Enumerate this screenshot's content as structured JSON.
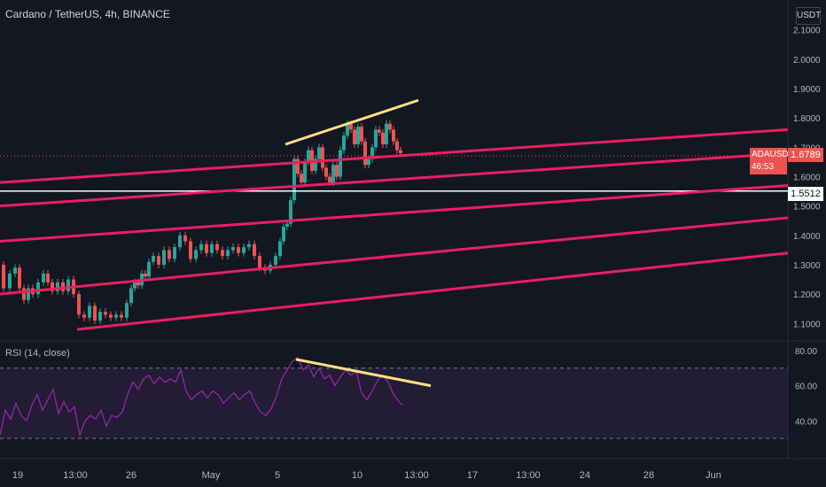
{
  "header": {
    "title": "Cardano / TetherUS, 4h, BINANCE",
    "currency_button": "USDT"
  },
  "current_price": {
    "symbol": "ADAUSDT",
    "value": "1.6789",
    "countdown": "46:53"
  },
  "horizontal_line": {
    "value": "1.5512"
  },
  "colors": {
    "background": "#131722",
    "up": "#26a69a",
    "down": "#ef5350",
    "channel": "#e91e63",
    "trend": "#ffe082",
    "rsi": "#9c27b0",
    "rsi_band": "#2a1f3d"
  },
  "chart_data": [
    {
      "type": "candlestick",
      "title": "Cardano / TetherUS, 4h, BINANCE",
      "y_ticks": [
        "2.1000",
        "2.0000",
        "1.9000",
        "1.8000",
        "1.7000",
        "1.6000",
        "1.5000",
        "1.4000",
        "1.3000",
        "1.2000",
        "1.1000"
      ],
      "ylim": [
        1.08,
        2.12
      ],
      "x_ticks": [
        "19",
        "13:00",
        "26",
        "May",
        "5",
        "10",
        "13:00",
        "17",
        "13:00",
        "24",
        "28",
        "Jun"
      ],
      "price_trace": [
        {
          "x": 0,
          "y": 1.3
        },
        {
          "x": 8,
          "y": 1.22
        },
        {
          "x": 14,
          "y": 1.27
        },
        {
          "x": 20,
          "y": 1.29
        },
        {
          "x": 24,
          "y": 1.22
        },
        {
          "x": 30,
          "y": 1.18
        },
        {
          "x": 34,
          "y": 1.22
        },
        {
          "x": 40,
          "y": 1.2
        },
        {
          "x": 46,
          "y": 1.24
        },
        {
          "x": 52,
          "y": 1.27
        },
        {
          "x": 56,
          "y": 1.24
        },
        {
          "x": 62,
          "y": 1.21
        },
        {
          "x": 68,
          "y": 1.24
        },
        {
          "x": 74,
          "y": 1.21
        },
        {
          "x": 80,
          "y": 1.25
        },
        {
          "x": 86,
          "y": 1.2
        },
        {
          "x": 92,
          "y": 1.13
        },
        {
          "x": 98,
          "y": 1.12
        },
        {
          "x": 104,
          "y": 1.16
        },
        {
          "x": 110,
          "y": 1.11
        },
        {
          "x": 116,
          "y": 1.14
        },
        {
          "x": 122,
          "y": 1.13
        },
        {
          "x": 128,
          "y": 1.12
        },
        {
          "x": 134,
          "y": 1.13
        },
        {
          "x": 140,
          "y": 1.12
        },
        {
          "x": 146,
          "y": 1.17
        },
        {
          "x": 150,
          "y": 1.22
        },
        {
          "x": 154,
          "y": 1.24
        },
        {
          "x": 158,
          "y": 1.23
        },
        {
          "x": 162,
          "y": 1.27
        },
        {
          "x": 166,
          "y": 1.26
        },
        {
          "x": 170,
          "y": 1.31
        },
        {
          "x": 176,
          "y": 1.33
        },
        {
          "x": 182,
          "y": 1.3
        },
        {
          "x": 188,
          "y": 1.35
        },
        {
          "x": 194,
          "y": 1.32
        },
        {
          "x": 200,
          "y": 1.36
        },
        {
          "x": 206,
          "y": 1.4
        },
        {
          "x": 212,
          "y": 1.38
        },
        {
          "x": 218,
          "y": 1.32
        },
        {
          "x": 224,
          "y": 1.35
        },
        {
          "x": 230,
          "y": 1.37
        },
        {
          "x": 236,
          "y": 1.34
        },
        {
          "x": 242,
          "y": 1.37
        },
        {
          "x": 248,
          "y": 1.35
        },
        {
          "x": 254,
          "y": 1.33
        },
        {
          "x": 260,
          "y": 1.35
        },
        {
          "x": 266,
          "y": 1.36
        },
        {
          "x": 272,
          "y": 1.34
        },
        {
          "x": 278,
          "y": 1.36
        },
        {
          "x": 284,
          "y": 1.37
        },
        {
          "x": 290,
          "y": 1.33
        },
        {
          "x": 296,
          "y": 1.29
        },
        {
          "x": 302,
          "y": 1.28
        },
        {
          "x": 308,
          "y": 1.3
        },
        {
          "x": 314,
          "y": 1.33
        },
        {
          "x": 318,
          "y": 1.38
        },
        {
          "x": 322,
          "y": 1.43
        },
        {
          "x": 326,
          "y": 1.44
        },
        {
          "x": 330,
          "y": 1.52
        },
        {
          "x": 334,
          "y": 1.66
        },
        {
          "x": 338,
          "y": 1.61
        },
        {
          "x": 342,
          "y": 1.58
        },
        {
          "x": 346,
          "y": 1.65
        },
        {
          "x": 350,
          "y": 1.69
        },
        {
          "x": 354,
          "y": 1.62
        },
        {
          "x": 358,
          "y": 1.66
        },
        {
          "x": 362,
          "y": 1.7
        },
        {
          "x": 366,
          "y": 1.63
        },
        {
          "x": 370,
          "y": 1.6
        },
        {
          "x": 374,
          "y": 1.58
        },
        {
          "x": 378,
          "y": 1.64
        },
        {
          "x": 382,
          "y": 1.6
        },
        {
          "x": 386,
          "y": 1.69
        },
        {
          "x": 390,
          "y": 1.74
        },
        {
          "x": 394,
          "y": 1.78
        },
        {
          "x": 398,
          "y": 1.76
        },
        {
          "x": 402,
          "y": 1.71
        },
        {
          "x": 406,
          "y": 1.77
        },
        {
          "x": 410,
          "y": 1.72
        },
        {
          "x": 414,
          "y": 1.64
        },
        {
          "x": 418,
          "y": 1.66
        },
        {
          "x": 422,
          "y": 1.7
        },
        {
          "x": 426,
          "y": 1.76
        },
        {
          "x": 430,
          "y": 1.75
        },
        {
          "x": 434,
          "y": 1.71
        },
        {
          "x": 438,
          "y": 1.78
        },
        {
          "x": 442,
          "y": 1.76
        },
        {
          "x": 446,
          "y": 1.72
        },
        {
          "x": 450,
          "y": 1.69
        },
        {
          "x": 454,
          "y": 1.68
        }
      ],
      "channel_lines": [
        {
          "x1": 0,
          "y1": 1.58,
          "x2": 889,
          "y2": 1.76
        },
        {
          "x1": 0,
          "y1": 1.5,
          "x2": 889,
          "y2": 1.68
        },
        {
          "x1": 0,
          "y1": 1.38,
          "x2": 889,
          "y2": 1.57
        },
        {
          "x1": 0,
          "y1": 1.2,
          "x2": 889,
          "y2": 1.46
        },
        {
          "x1": 87,
          "y1": 1.08,
          "x2": 889,
          "y2": 1.34
        }
      ],
      "trend_line": {
        "x1": 322,
        "y1": 1.71,
        "x2": 472,
        "y2": 1.86
      }
    },
    {
      "type": "line",
      "title": "RSI (14, close)",
      "y_ticks": [
        "80.00",
        "60.00",
        "40.00"
      ],
      "ylim": [
        26,
        82
      ],
      "upper_band": 70,
      "lower_band": 30,
      "rsi_trace": [
        {
          "x": 0,
          "y": 32
        },
        {
          "x": 6,
          "y": 46
        },
        {
          "x": 12,
          "y": 41
        },
        {
          "x": 18,
          "y": 50
        },
        {
          "x": 24,
          "y": 43
        },
        {
          "x": 30,
          "y": 40
        },
        {
          "x": 36,
          "y": 49
        },
        {
          "x": 42,
          "y": 55
        },
        {
          "x": 48,
          "y": 46
        },
        {
          "x": 54,
          "y": 52
        },
        {
          "x": 60,
          "y": 58
        },
        {
          "x": 66,
          "y": 44
        },
        {
          "x": 72,
          "y": 51
        },
        {
          "x": 78,
          "y": 45
        },
        {
          "x": 84,
          "y": 48
        },
        {
          "x": 90,
          "y": 32
        },
        {
          "x": 96,
          "y": 40
        },
        {
          "x": 102,
          "y": 43
        },
        {
          "x": 108,
          "y": 41
        },
        {
          "x": 114,
          "y": 46
        },
        {
          "x": 120,
          "y": 37
        },
        {
          "x": 126,
          "y": 43
        },
        {
          "x": 132,
          "y": 42
        },
        {
          "x": 138,
          "y": 45
        },
        {
          "x": 144,
          "y": 55
        },
        {
          "x": 150,
          "y": 62
        },
        {
          "x": 156,
          "y": 58
        },
        {
          "x": 162,
          "y": 64
        },
        {
          "x": 168,
          "y": 66
        },
        {
          "x": 174,
          "y": 61
        },
        {
          "x": 180,
          "y": 65
        },
        {
          "x": 186,
          "y": 62
        },
        {
          "x": 192,
          "y": 64
        },
        {
          "x": 198,
          "y": 62
        },
        {
          "x": 204,
          "y": 69
        },
        {
          "x": 210,
          "y": 57
        },
        {
          "x": 216,
          "y": 52
        },
        {
          "x": 222,
          "y": 55
        },
        {
          "x": 228,
          "y": 57
        },
        {
          "x": 234,
          "y": 53
        },
        {
          "x": 240,
          "y": 57
        },
        {
          "x": 246,
          "y": 55
        },
        {
          "x": 252,
          "y": 50
        },
        {
          "x": 258,
          "y": 53
        },
        {
          "x": 264,
          "y": 56
        },
        {
          "x": 270,
          "y": 52
        },
        {
          "x": 276,
          "y": 55
        },
        {
          "x": 282,
          "y": 57
        },
        {
          "x": 288,
          "y": 50
        },
        {
          "x": 294,
          "y": 45
        },
        {
          "x": 300,
          "y": 43
        },
        {
          "x": 306,
          "y": 47
        },
        {
          "x": 312,
          "y": 54
        },
        {
          "x": 318,
          "y": 64
        },
        {
          "x": 324,
          "y": 69
        },
        {
          "x": 330,
          "y": 74
        },
        {
          "x": 336,
          "y": 76
        },
        {
          "x": 342,
          "y": 69
        },
        {
          "x": 348,
          "y": 72
        },
        {
          "x": 354,
          "y": 65
        },
        {
          "x": 360,
          "y": 70
        },
        {
          "x": 366,
          "y": 64
        },
        {
          "x": 372,
          "y": 66
        },
        {
          "x": 378,
          "y": 60
        },
        {
          "x": 384,
          "y": 65
        },
        {
          "x": 390,
          "y": 69
        },
        {
          "x": 396,
          "y": 66
        },
        {
          "x": 402,
          "y": 68
        },
        {
          "x": 408,
          "y": 56
        },
        {
          "x": 414,
          "y": 52
        },
        {
          "x": 420,
          "y": 57
        },
        {
          "x": 426,
          "y": 63
        },
        {
          "x": 432,
          "y": 66
        },
        {
          "x": 438,
          "y": 62
        },
        {
          "x": 444,
          "y": 55
        },
        {
          "x": 450,
          "y": 51
        },
        {
          "x": 454,
          "y": 49
        }
      ],
      "trend_line": {
        "x1": 334,
        "y1": 75,
        "x2": 486,
        "y2": 60
      }
    }
  ]
}
